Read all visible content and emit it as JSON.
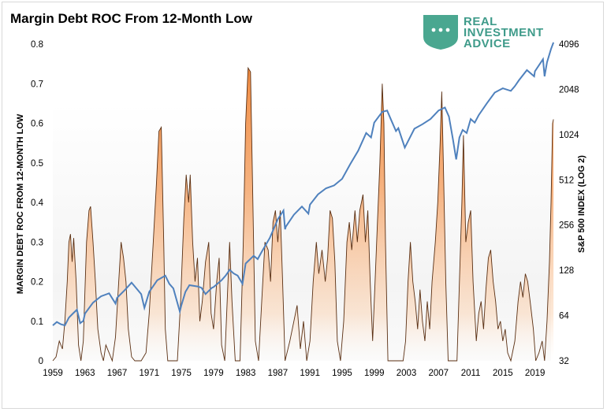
{
  "chart_data": {
    "type": "area+line",
    "title": "Margin Debt ROC From 12-Month Low",
    "ylabel": "MARGIN DEBT ROC FROM 12-MONTH LOW",
    "y2label": "S&P 500 INDEX (LOG 2)",
    "ylim": [
      0,
      0.8
    ],
    "yticks": [
      "0",
      "0.1",
      "0.2",
      "0.3",
      "0.4",
      "0.5",
      "0.6",
      "0.7",
      "0.8"
    ],
    "y2scale": "log2",
    "y2lim": [
      32,
      4096
    ],
    "y2ticks": [
      "32",
      "64",
      "128",
      "256",
      "512",
      "1024",
      "2048",
      "4096"
    ],
    "xlim": [
      1959,
      2021
    ],
    "xticks": [
      "1959",
      "1963",
      "1967",
      "1971",
      "1975",
      "1979",
      "1983",
      "1987",
      "1991",
      "1995",
      "1999",
      "2003",
      "2007",
      "2011",
      "2015",
      "2019"
    ],
    "series": [
      {
        "name": "Margin Debt ROC",
        "axis": "left",
        "color": "#f4a460",
        "points": [
          [
            1959,
            0
          ],
          [
            1959.4,
            0.01
          ],
          [
            1959.8,
            0.05
          ],
          [
            1960.2,
            0.03
          ],
          [
            1960.5,
            0.1
          ],
          [
            1960.8,
            0.2
          ],
          [
            1961.0,
            0.3
          ],
          [
            1961.2,
            0.32
          ],
          [
            1961.4,
            0.25
          ],
          [
            1961.6,
            0.31
          ],
          [
            1961.9,
            0.2
          ],
          [
            1962.2,
            0.04
          ],
          [
            1962.5,
            0
          ],
          [
            1962.8,
            0.05
          ],
          [
            1963.0,
            0.18
          ],
          [
            1963.2,
            0.3
          ],
          [
            1963.5,
            0.38
          ],
          [
            1963.7,
            0.39
          ],
          [
            1964.0,
            0.3
          ],
          [
            1964.3,
            0.2
          ],
          [
            1964.6,
            0.08
          ],
          [
            1965.0,
            0.02
          ],
          [
            1965.3,
            0
          ],
          [
            1965.6,
            0.04
          ],
          [
            1966.0,
            0.02
          ],
          [
            1966.4,
            0
          ],
          [
            1966.8,
            0.06
          ],
          [
            1967.2,
            0.2
          ],
          [
            1967.5,
            0.3
          ],
          [
            1967.8,
            0.26
          ],
          [
            1968.1,
            0.2
          ],
          [
            1968.4,
            0.08
          ],
          [
            1968.8,
            0.01
          ],
          [
            1969.2,
            0
          ],
          [
            1970.0,
            0
          ],
          [
            1970.6,
            0.02
          ],
          [
            1971.0,
            0.12
          ],
          [
            1971.5,
            0.3
          ],
          [
            1971.9,
            0.45
          ],
          [
            1972.2,
            0.58
          ],
          [
            1972.5,
            0.59
          ],
          [
            1972.8,
            0.3
          ],
          [
            1973.0,
            0.08
          ],
          [
            1973.3,
            0
          ],
          [
            1974.5,
            0
          ],
          [
            1974.9,
            0.15
          ],
          [
            1975.3,
            0.36
          ],
          [
            1975.6,
            0.47
          ],
          [
            1975.9,
            0.4
          ],
          [
            1976.1,
            0.47
          ],
          [
            1976.4,
            0.3
          ],
          [
            1976.7,
            0.2
          ],
          [
            1977.0,
            0.26
          ],
          [
            1977.3,
            0.1
          ],
          [
            1977.6,
            0.15
          ],
          [
            1978.0,
            0.25
          ],
          [
            1978.4,
            0.3
          ],
          [
            1978.7,
            0.12
          ],
          [
            1979.0,
            0.08
          ],
          [
            1979.4,
            0.2
          ],
          [
            1979.7,
            0.26
          ],
          [
            1980.0,
            0.04
          ],
          [
            1980.4,
            0
          ],
          [
            1980.8,
            0.2
          ],
          [
            1981.0,
            0.3
          ],
          [
            1981.3,
            0.15
          ],
          [
            1981.7,
            0
          ],
          [
            1982.3,
            0
          ],
          [
            1982.7,
            0.3
          ],
          [
            1983.0,
            0.6
          ],
          [
            1983.3,
            0.74
          ],
          [
            1983.6,
            0.73
          ],
          [
            1983.9,
            0.4
          ],
          [
            1984.2,
            0.05
          ],
          [
            1984.6,
            0
          ],
          [
            1985.0,
            0.15
          ],
          [
            1985.4,
            0.3
          ],
          [
            1985.8,
            0.28
          ],
          [
            1986.1,
            0.2
          ],
          [
            1986.4,
            0.35
          ],
          [
            1986.7,
            0.38
          ],
          [
            1987.0,
            0.3
          ],
          [
            1987.3,
            0.38
          ],
          [
            1987.6,
            0.2
          ],
          [
            1987.9,
            0
          ],
          [
            1988.5,
            0.05
          ],
          [
            1989.0,
            0.1
          ],
          [
            1989.4,
            0.14
          ],
          [
            1989.8,
            0.03
          ],
          [
            1990.2,
            0.1
          ],
          [
            1990.6,
            0
          ],
          [
            1991.0,
            0.05
          ],
          [
            1991.4,
            0.2
          ],
          [
            1991.8,
            0.3
          ],
          [
            1992.1,
            0.22
          ],
          [
            1992.5,
            0.28
          ],
          [
            1992.9,
            0.2
          ],
          [
            1993.2,
            0.26
          ],
          [
            1993.5,
            0.38
          ],
          [
            1993.8,
            0.36
          ],
          [
            1994.1,
            0.25
          ],
          [
            1994.4,
            0.05
          ],
          [
            1994.8,
            0
          ],
          [
            1995.2,
            0.1
          ],
          [
            1995.6,
            0.3
          ],
          [
            1995.9,
            0.35
          ],
          [
            1996.2,
            0.28
          ],
          [
            1996.6,
            0.38
          ],
          [
            1996.9,
            0.3
          ],
          [
            1997.2,
            0.38
          ],
          [
            1997.6,
            0.42
          ],
          [
            1997.9,
            0.3
          ],
          [
            1998.2,
            0.38
          ],
          [
            1998.5,
            0.2
          ],
          [
            1998.8,
            0.05
          ],
          [
            1999.1,
            0.2
          ],
          [
            1999.4,
            0.35
          ],
          [
            1999.7,
            0.5
          ],
          [
            2000.0,
            0.7
          ],
          [
            2000.2,
            0.6
          ],
          [
            2000.4,
            0.3
          ],
          [
            2000.7,
            0
          ],
          [
            2002.6,
            0
          ],
          [
            2002.9,
            0.05
          ],
          [
            2003.2,
            0.2
          ],
          [
            2003.5,
            0.3
          ],
          [
            2003.8,
            0.2
          ],
          [
            2004.1,
            0.15
          ],
          [
            2004.4,
            0.08
          ],
          [
            2004.7,
            0.18
          ],
          [
            2005.0,
            0.1
          ],
          [
            2005.3,
            0.05
          ],
          [
            2005.6,
            0.15
          ],
          [
            2005.9,
            0.08
          ],
          [
            2006.2,
            0.2
          ],
          [
            2006.6,
            0.3
          ],
          [
            2006.9,
            0.4
          ],
          [
            2007.2,
            0.55
          ],
          [
            2007.4,
            0.68
          ],
          [
            2007.6,
            0.5
          ],
          [
            2007.9,
            0.2
          ],
          [
            2008.2,
            0
          ],
          [
            2009.3,
            0
          ],
          [
            2009.6,
            0.2
          ],
          [
            2009.9,
            0.4
          ],
          [
            2010.1,
            0.57
          ],
          [
            2010.4,
            0.3
          ],
          [
            2010.7,
            0.35
          ],
          [
            2011.0,
            0.38
          ],
          [
            2011.3,
            0.2
          ],
          [
            2011.7,
            0.05
          ],
          [
            2012.0,
            0.12
          ],
          [
            2012.3,
            0.15
          ],
          [
            2012.6,
            0.08
          ],
          [
            2012.9,
            0.18
          ],
          [
            2013.2,
            0.26
          ],
          [
            2013.5,
            0.28
          ],
          [
            2013.8,
            0.2
          ],
          [
            2014.1,
            0.15
          ],
          [
            2014.4,
            0.08
          ],
          [
            2014.7,
            0.1
          ],
          [
            2015.0,
            0.05
          ],
          [
            2015.3,
            0.08
          ],
          [
            2015.6,
            0.02
          ],
          [
            2016.0,
            0
          ],
          [
            2016.5,
            0.05
          ],
          [
            2016.9,
            0.15
          ],
          [
            2017.2,
            0.2
          ],
          [
            2017.5,
            0.16
          ],
          [
            2017.8,
            0.22
          ],
          [
            2018.1,
            0.2
          ],
          [
            2018.4,
            0.15
          ],
          [
            2018.8,
            0.08
          ],
          [
            2019.1,
            0
          ],
          [
            2019.5,
            0.02
          ],
          [
            2019.9,
            0.05
          ],
          [
            2020.2,
            0
          ],
          [
            2020.5,
            0.1
          ],
          [
            2020.8,
            0.25
          ],
          [
            2021.0,
            0.4
          ],
          [
            2021.2,
            0.6
          ],
          [
            2021.3,
            0.61
          ]
        ]
      },
      {
        "name": "S&P 500 Index",
        "axis": "right",
        "color": "#4f81bd",
        "points": [
          [
            1959,
            55
          ],
          [
            1959.5,
            58
          ],
          [
            1960,
            56
          ],
          [
            1960.5,
            55
          ],
          [
            1961,
            62
          ],
          [
            1961.5,
            66
          ],
          [
            1962,
            70
          ],
          [
            1962.4,
            57
          ],
          [
            1962.8,
            59
          ],
          [
            1963,
            66
          ],
          [
            1964,
            78
          ],
          [
            1965,
            86
          ],
          [
            1966,
            90
          ],
          [
            1966.8,
            77
          ],
          [
            1967,
            84
          ],
          [
            1968,
            95
          ],
          [
            1968.8,
            106
          ],
          [
            1969,
            103
          ],
          [
            1970,
            89
          ],
          [
            1970.4,
            72
          ],
          [
            1971,
            92
          ],
          [
            1972,
            110
          ],
          [
            1973,
            118
          ],
          [
            1973.5,
            104
          ],
          [
            1974,
            97
          ],
          [
            1974.8,
            68
          ],
          [
            1975,
            75
          ],
          [
            1975.5,
            92
          ],
          [
            1976,
            102
          ],
          [
            1977,
            100
          ],
          [
            1977.5,
            98
          ],
          [
            1978,
            89
          ],
          [
            1978.8,
            98
          ],
          [
            1979,
            99
          ],
          [
            1980,
            110
          ],
          [
            1980.5,
            118
          ],
          [
            1981,
            129
          ],
          [
            1981.5,
            122
          ],
          [
            1982,
            118
          ],
          [
            1982.6,
            104
          ],
          [
            1983,
            142
          ],
          [
            1984,
            160
          ],
          [
            1984.5,
            152
          ],
          [
            1985,
            170
          ],
          [
            1986,
            210
          ],
          [
            1987,
            280
          ],
          [
            1987.7,
            320
          ],
          [
            1987.9,
            240
          ],
          [
            1988,
            250
          ],
          [
            1989,
            300
          ],
          [
            1990,
            340
          ],
          [
            1990.8,
            305
          ],
          [
            1991,
            350
          ],
          [
            1992,
            410
          ],
          [
            1993,
            450
          ],
          [
            1994,
            470
          ],
          [
            1995,
            520
          ],
          [
            1996,
            650
          ],
          [
            1997,
            800
          ],
          [
            1998,
            1050
          ],
          [
            1998.6,
            980
          ],
          [
            1999,
            1230
          ],
          [
            2000,
            1450
          ],
          [
            2000.6,
            1480
          ],
          [
            2001,
            1320
          ],
          [
            2001.7,
            1080
          ],
          [
            2002,
            1130
          ],
          [
            2002.8,
            840
          ],
          [
            2003,
            880
          ],
          [
            2004,
            1120
          ],
          [
            2005,
            1200
          ],
          [
            2006,
            1300
          ],
          [
            2007,
            1480
          ],
          [
            2007.8,
            1550
          ],
          [
            2008.3,
            1350
          ],
          [
            2008.8,
            950
          ],
          [
            2009.2,
            700
          ],
          [
            2009.6,
            980
          ],
          [
            2010,
            1100
          ],
          [
            2010.5,
            1050
          ],
          [
            2011,
            1300
          ],
          [
            2011.5,
            1230
          ],
          [
            2012,
            1380
          ],
          [
            2013,
            1650
          ],
          [
            2014,
            1950
          ],
          [
            2015,
            2080
          ],
          [
            2016,
            2000
          ],
          [
            2016.5,
            2150
          ],
          [
            2017,
            2350
          ],
          [
            2018,
            2750
          ],
          [
            2018.9,
            2500
          ],
          [
            2019,
            2700
          ],
          [
            2020,
            3250
          ],
          [
            2020.2,
            2500
          ],
          [
            2020.5,
            3100
          ],
          [
            2021,
            3800
          ],
          [
            2021.3,
            4200
          ]
        ]
      }
    ]
  },
  "branding": {
    "line1": "REAL",
    "line2": "INVESTMENT",
    "line3": "ADVICE",
    "color": "#3f9b8a"
  }
}
